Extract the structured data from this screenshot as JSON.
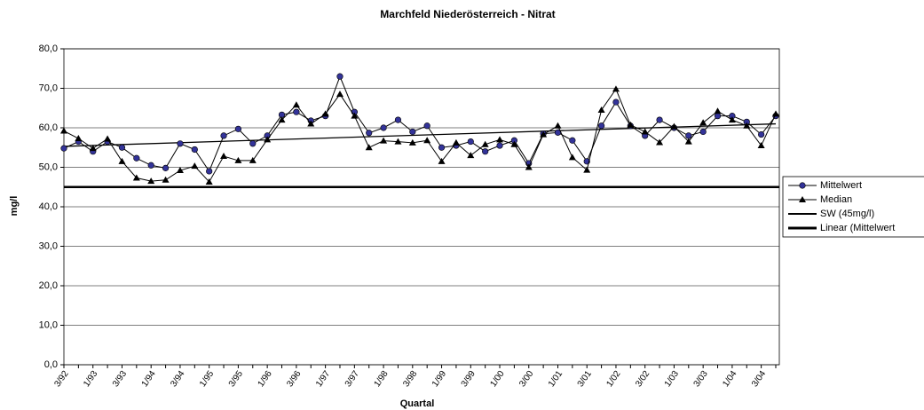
{
  "chart_data": {
    "type": "line",
    "title": "Marchfeld Niederösterreich - Nitrat",
    "y_label": "mg/l",
    "x_label": "Quartal",
    "categories": [
      "3/92",
      null,
      "1/93",
      null,
      "3/93",
      null,
      "1/94",
      null,
      "3/94",
      null,
      "1/95",
      null,
      "3/95",
      null,
      "1/96",
      null,
      "3/96",
      null,
      "1/97",
      null,
      "3/97",
      null,
      "1/98",
      null,
      "3/98",
      null,
      "1/99",
      null,
      "3/99",
      null,
      "1/00",
      null,
      "3/00",
      null,
      "1/01",
      null,
      "3/01",
      null,
      "1/02",
      null,
      "3/02",
      null,
      "1/03",
      null,
      "3/03",
      null,
      "1/04",
      null,
      "3/04",
      null
    ],
    "series": [
      {
        "name": "Mittelwert",
        "color": "#333399",
        "marker": "circle",
        "values": [
          54.8,
          56.5,
          54,
          56.5,
          55,
          52.3,
          50.5,
          49.8,
          56,
          54.5,
          49,
          58,
          59.7,
          56,
          58,
          63.3,
          64,
          61.8,
          63,
          73,
          64,
          58.7,
          60,
          62,
          59,
          60.5,
          55,
          55.5,
          56.5,
          54,
          55.5,
          56.8,
          51,
          58.5,
          58.8,
          56.8,
          51.5,
          60.5,
          66.5,
          60.5,
          58,
          62,
          60,
          58,
          59,
          63,
          63,
          61.5,
          58.3,
          63
        ]
      },
      {
        "name": "Median",
        "color": "#000000",
        "marker": "triangle",
        "values": [
          59.2,
          57.3,
          54.8,
          57.2,
          51.5,
          47.3,
          46.5,
          46.8,
          49.2,
          50.3,
          46.3,
          52.8,
          51.7,
          51.7,
          57,
          62,
          65.8,
          61,
          63.5,
          68.5,
          63,
          55,
          56.7,
          56.5,
          56.2,
          56.8,
          51.5,
          56.2,
          53,
          55.8,
          57,
          55.8,
          50,
          58.3,
          60.5,
          52.5,
          49.3,
          64.5,
          69.8,
          60.7,
          59,
          56.3,
          60.3,
          56.5,
          61.3,
          64.2,
          62,
          60.5,
          55.5,
          63.5
        ]
      }
    ],
    "reference_line": {
      "name": "SW (45mg/l)",
      "value": 45,
      "color": "#000000"
    },
    "trend_line": {
      "name": "Linear (Mittelwert",
      "from": 55.3,
      "to": 61.0,
      "color": "#000000"
    },
    "ylim": [
      0,
      80
    ],
    "yticks": [
      {
        "value": 0,
        "label": "0,0"
      },
      {
        "value": 10,
        "label": "10,0"
      },
      {
        "value": 20,
        "label": "20,0"
      },
      {
        "value": 30,
        "label": "30,0"
      },
      {
        "value": 40,
        "label": "40,0"
      },
      {
        "value": 50,
        "label": "50,0"
      },
      {
        "value": 60,
        "label": "60,0"
      },
      {
        "value": 70,
        "label": "70,0"
      },
      {
        "value": 80,
        "label": "80,0"
      }
    ],
    "grid": true,
    "legend": "right"
  }
}
